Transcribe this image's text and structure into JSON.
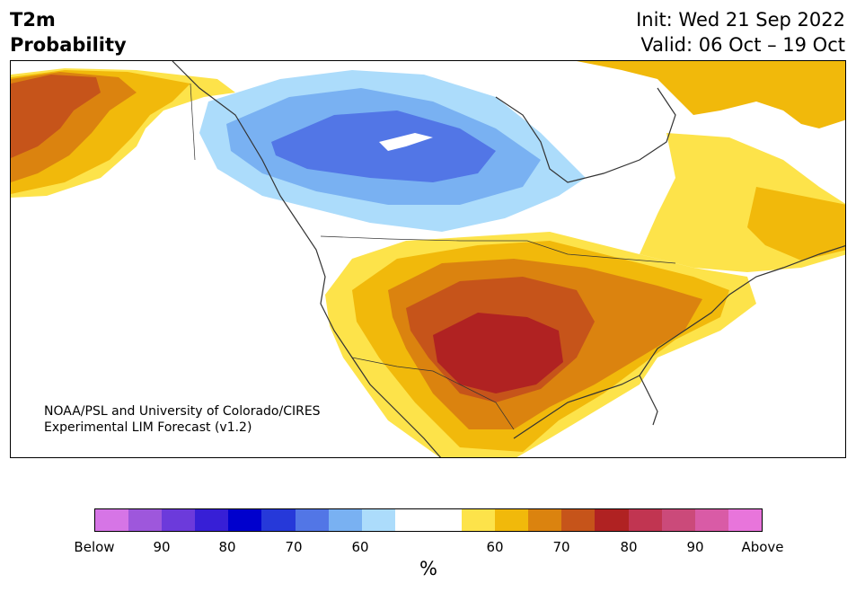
{
  "title": {
    "line1": "T2m",
    "line2": "Probability"
  },
  "init": {
    "line1": "Init: Wed 21 Sep 2022",
    "line2": "Valid: 06 Oct – 19 Oct"
  },
  "credit": {
    "line1": "NOAA/PSL and University of Colorado/CIRES",
    "line2": "Experimental LIM Forecast (v1.2)"
  },
  "legend": {
    "unit": "%",
    "colors": [
      "#d675e6",
      "#9e57dc",
      "#6c3adb",
      "#371fd6",
      "#0000cd",
      "#2639d9",
      "#5276e6",
      "#79b1f2",
      "#acdcfb",
      "#ffffff",
      "#fde34a",
      "#f1b90b",
      "#db830f",
      "#c6541a",
      "#b02222",
      "#c13551",
      "#cb4a7a",
      "#d95ba6",
      "#e875db"
    ],
    "ticks": [
      "Below",
      "90",
      "80",
      "70",
      "60",
      "60",
      "70",
      "80",
      "90",
      "Above"
    ]
  },
  "map": {
    "region": "North America",
    "below_normal_core": "Canadian Prairies / Hudson Bay region",
    "above_normal_core": "Southern Plains / Texas"
  }
}
